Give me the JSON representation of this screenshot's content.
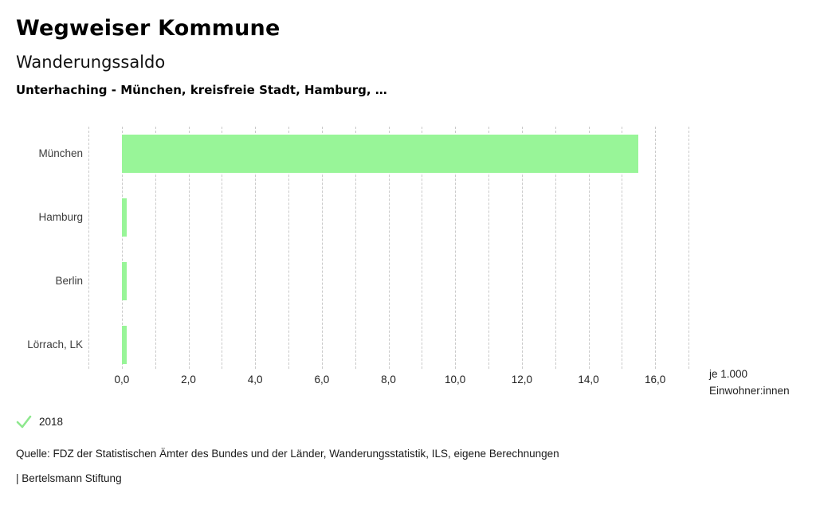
{
  "header": {
    "title": "Wegweiser Kommune",
    "chart_title": "Wanderungssaldo",
    "selection": "Unterhaching - München, kreisfreie Stadt, Hamburg, …"
  },
  "chart_data": {
    "type": "bar",
    "orientation": "horizontal",
    "title": "Wanderungssaldo",
    "subtitle": "Unterhaching - München, kreisfreie Stadt, Hamburg, …",
    "categories": [
      "München",
      "Hamburg",
      "Berlin",
      "Lörrach, LK"
    ],
    "series": [
      {
        "name": "2018",
        "values": [
          15.5,
          0.1,
          0.1,
          0.1
        ]
      }
    ],
    "unit_lines": [
      "je 1.000",
      "Einwohner:innen"
    ],
    "xlim": [
      -1,
      17
    ],
    "grid_interval": 1,
    "grid_style": "vertical-dashed",
    "x_major_ticks": [
      0,
      2,
      4,
      6,
      8,
      10,
      12,
      14,
      16
    ],
    "x_tick_labels": [
      "0,0",
      "2,0",
      "4,0",
      "6,0",
      "8,0",
      "10,0",
      "12,0",
      "14,0",
      "16,0"
    ],
    "legend_position": "bottom-left",
    "legend_marker": "check-icon",
    "bar_color": "#98f598",
    "grid_color": "#c9c9c9",
    "legend_color": "#8ee88e"
  },
  "footer": {
    "source": "Quelle: FDZ der Statistischen Ämter des Bundes und der Länder, Wanderungsstatistik, ILS, eigene Berechnungen",
    "attribution": "| Bertelsmann Stiftung"
  }
}
